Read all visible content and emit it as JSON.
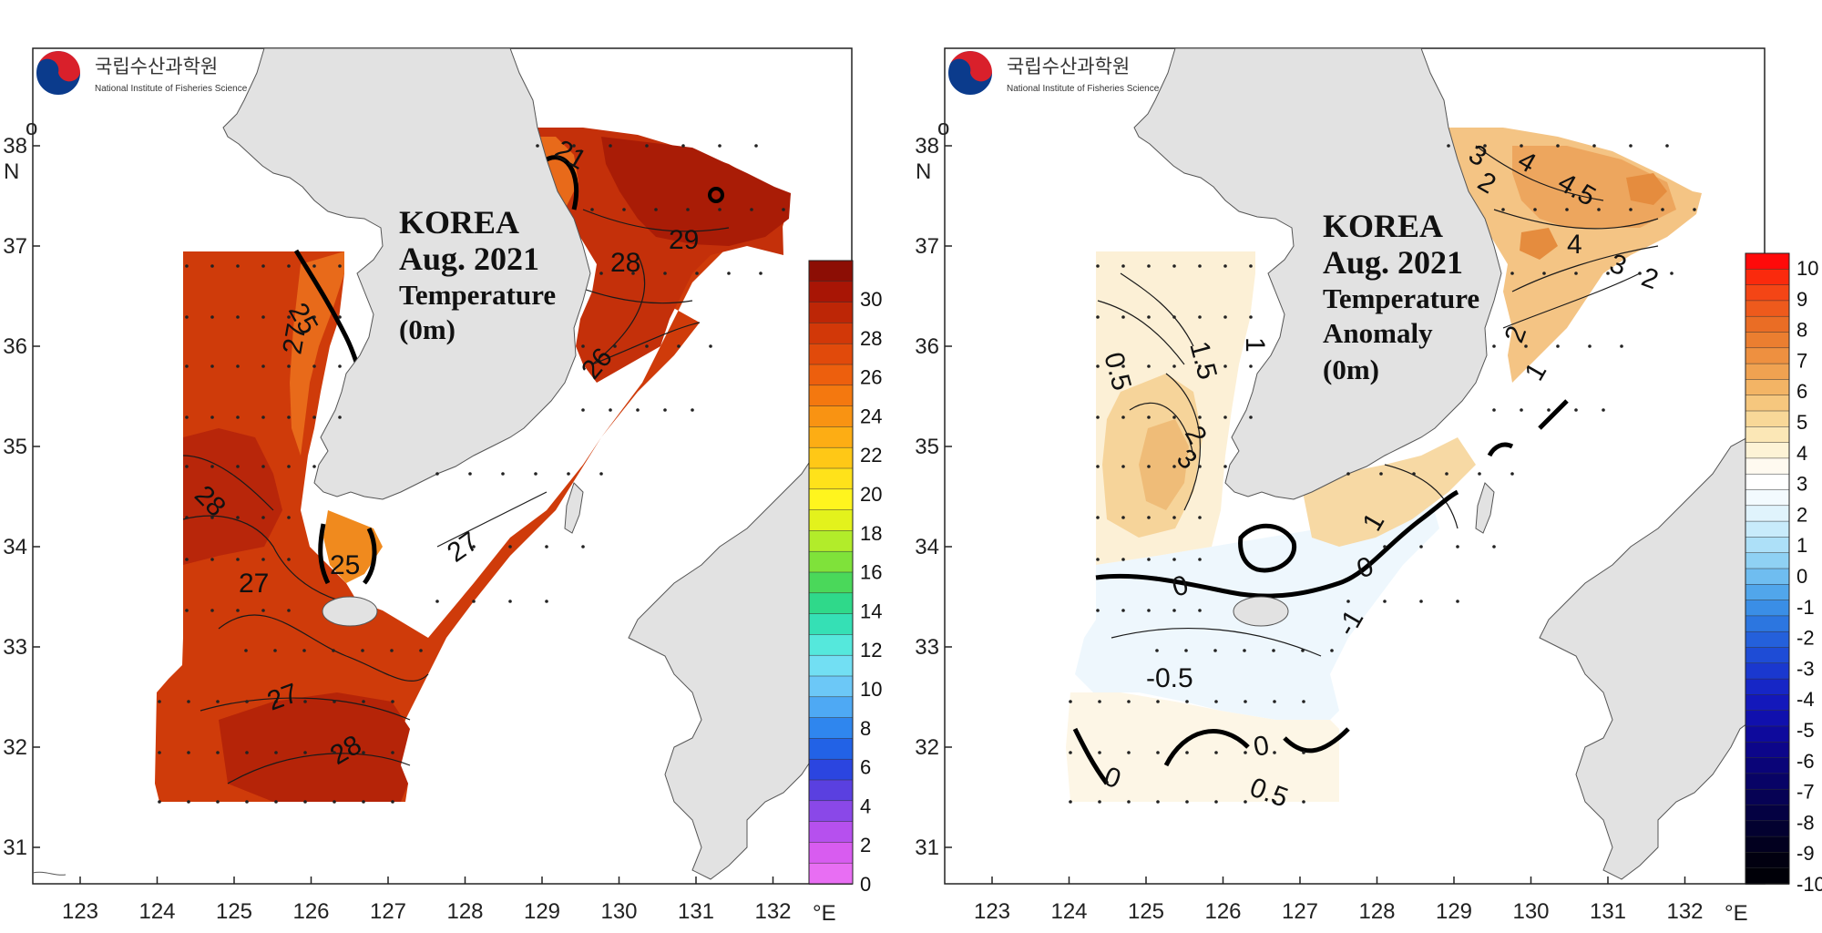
{
  "logo": {
    "org_ko": "국립수산과학원",
    "org_en": "National Institute of Fisheries Science"
  },
  "axes": {
    "lon_ticks": [
      "123",
      "124",
      "125",
      "126",
      "127",
      "128",
      "129",
      "130",
      "131",
      "132"
    ],
    "lon_unit": "°E",
    "lat_ticks": [
      "38",
      "37",
      "36",
      "35",
      "34",
      "33",
      "32",
      "31"
    ],
    "lat_unit_deg": "o",
    "lat_unit_n": "N"
  },
  "maps": [
    {
      "id": "temperature",
      "title_lines": [
        "KOREA",
        "Aug. 2021",
        "Temperature",
        "(0m)"
      ],
      "colorbar": {
        "labels": [
          "30",
          "28",
          "26",
          "24",
          "22",
          "20",
          "18",
          "16",
          "14",
          "12",
          "10",
          "8",
          "6",
          "4",
          "2",
          "0"
        ],
        "colors": [
          "#8c0e04",
          "#a81505",
          "#bd2606",
          "#d23808",
          "#e14a0b",
          "#ed5f0d",
          "#f4780f",
          "#f99312",
          "#fdad14",
          "#ffc816",
          "#ffe21a",
          "#fff51e",
          "#e3f21c",
          "#b2ec2a",
          "#7fe23a",
          "#4ad85a",
          "#2fd98a",
          "#35e0b5",
          "#55e8dc",
          "#72dff3",
          "#6cc8f7",
          "#4ea9f4",
          "#2f86ee",
          "#2262e6",
          "#2b45e0",
          "#5a40e0",
          "#8a48e8",
          "#b650ee",
          "#d85cf0",
          "#e86ef3"
        ]
      },
      "contour_labels": [
        "21",
        "29",
        "28",
        "25",
        "27",
        "26",
        "28",
        "27",
        "25",
        "27",
        "27",
        "28"
      ]
    },
    {
      "id": "anomaly",
      "title_lines": [
        "KOREA",
        "Aug. 2021",
        "Temperature",
        "Anomaly",
        "(0m)"
      ],
      "colorbar": {
        "labels": [
          "10",
          "9",
          "8",
          "7",
          "6",
          "5",
          "4",
          "3",
          "2",
          "1",
          "0",
          "-1",
          "-2",
          "-3",
          "-4",
          "-5",
          "-6",
          "-7",
          "-8",
          "-9",
          "-10"
        ],
        "colors": [
          "#ff0a0a",
          "#fa2a0d",
          "#f44515",
          "#ee5a1c",
          "#ea6d25",
          "#eb7e30",
          "#ee9040",
          "#f0a251",
          "#f3b465",
          "#f6c77e",
          "#f8d898",
          "#fbe7b6",
          "#fdf3d6",
          "#fffaf0",
          "#ffffff",
          "#f3fafe",
          "#e0f3fc",
          "#c8ebfb",
          "#ade0f8",
          "#8fd1f4",
          "#6fbdf0",
          "#51a6eb",
          "#3a8ee6",
          "#2c76e0",
          "#2460db",
          "#1e4cd6",
          "#1a38cf",
          "#1626c6",
          "#1318bb",
          "#1010ad",
          "#0e0a9c",
          "#0c068a",
          "#0a0478",
          "#080366",
          "#060254",
          "#040142",
          "#030130",
          "#02001f",
          "#010010",
          "#000008"
        ]
      },
      "contour_labels": [
        "3",
        "2",
        "4",
        "4.5",
        "4",
        "3",
        "2",
        "2",
        "1",
        "0.5",
        "1.5",
        "1",
        "2",
        "3",
        "1",
        "0",
        "0",
        "-1",
        "-0.5",
        "0",
        "0.5",
        "0"
      ]
    }
  ]
}
